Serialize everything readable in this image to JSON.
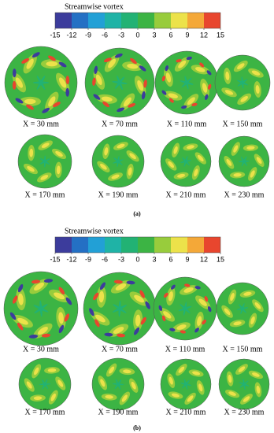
{
  "panels": [
    {
      "colorbar": {
        "title": "Streamwise vortex",
        "ticks": [
          -15,
          -12,
          -9,
          -6,
          -3,
          0,
          3,
          6,
          9,
          12,
          15
        ],
        "colors": [
          "#3c3c9c",
          "#2470c4",
          "#22a0d6",
          "#1fb3a6",
          "#22b274",
          "#3cb444",
          "#98cc3c",
          "#ece24a",
          "#f4a838",
          "#e8462e"
        ]
      },
      "plots": [
        {
          "label": "X = 30 mm"
        },
        {
          "label": "X = 70 mm"
        },
        {
          "label": "X = 110 mm"
        },
        {
          "label": "X = 150 mm"
        },
        {
          "label": "X = 170 mm"
        },
        {
          "label": "X = 190 mm"
        },
        {
          "label": "X = 210 mm"
        },
        {
          "label": "X = 230 mm"
        }
      ],
      "caption": "(a)"
    },
    {
      "colorbar": {
        "title": "Streamwise vortex",
        "ticks": [
          -15,
          -12,
          -9,
          -6,
          -3,
          0,
          3,
          6,
          9,
          12,
          15
        ],
        "colors": [
          "#3c3c9c",
          "#2470c4",
          "#22a0d6",
          "#1fb3a6",
          "#22b274",
          "#3cb444",
          "#98cc3c",
          "#ece24a",
          "#f4a838",
          "#e8462e"
        ]
      },
      "plots": [
        {
          "label": "X = 30 mm"
        },
        {
          "label": "X = 70 mm"
        },
        {
          "label": "X = 110 mm"
        },
        {
          "label": "X = 150 mm"
        },
        {
          "label": "X = 170 mm"
        },
        {
          "label": "X = 190 mm"
        },
        {
          "label": "X = 210 mm"
        },
        {
          "label": "X = 230 mm"
        }
      ],
      "caption": "(b)"
    }
  ]
}
